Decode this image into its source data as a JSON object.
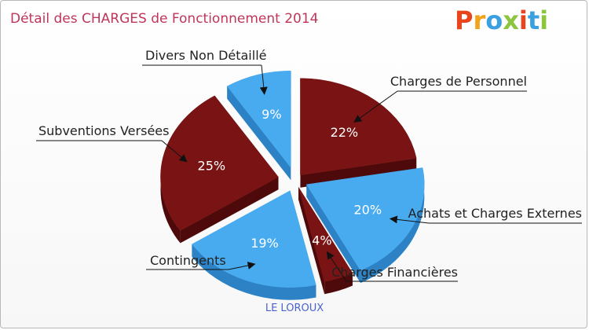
{
  "title": "Détail des CHARGES de Fonctionnement 2014",
  "subtitle": "LE LOROUX",
  "logo": {
    "text": "Proxiti",
    "colors": [
      "#e8451e",
      "#f2a31a",
      "#3aa0e0",
      "#8cc63f",
      "#e8451e",
      "#3aa0e0",
      "#8cc63f"
    ]
  },
  "colors": {
    "dark": "#7a1414",
    "dark_side": "#4e0a0a",
    "light": "#48abf0",
    "light_side": "#2c82c4"
  },
  "chart_data": {
    "type": "pie",
    "title": "Détail des CHARGES de Fonctionnement 2014",
    "subtitle": "LE LOROUX",
    "slices": [
      {
        "name": "Charges de Personnel",
        "value": 22,
        "label": "22%",
        "color": "dark"
      },
      {
        "name": "Achats et Charges Externes",
        "value": 20,
        "label": "20%",
        "color": "light"
      },
      {
        "name": "Charges Financières",
        "value": 4,
        "label": "4%",
        "color": "dark"
      },
      {
        "name": "Contingents",
        "value": 19,
        "label": "19%",
        "color": "light"
      },
      {
        "name": "Subventions Versées",
        "value": 25,
        "label": "25%",
        "color": "dark"
      },
      {
        "name": "Divers Non Détaillé",
        "value": 9,
        "label": "9%",
        "color": "light"
      }
    ]
  }
}
